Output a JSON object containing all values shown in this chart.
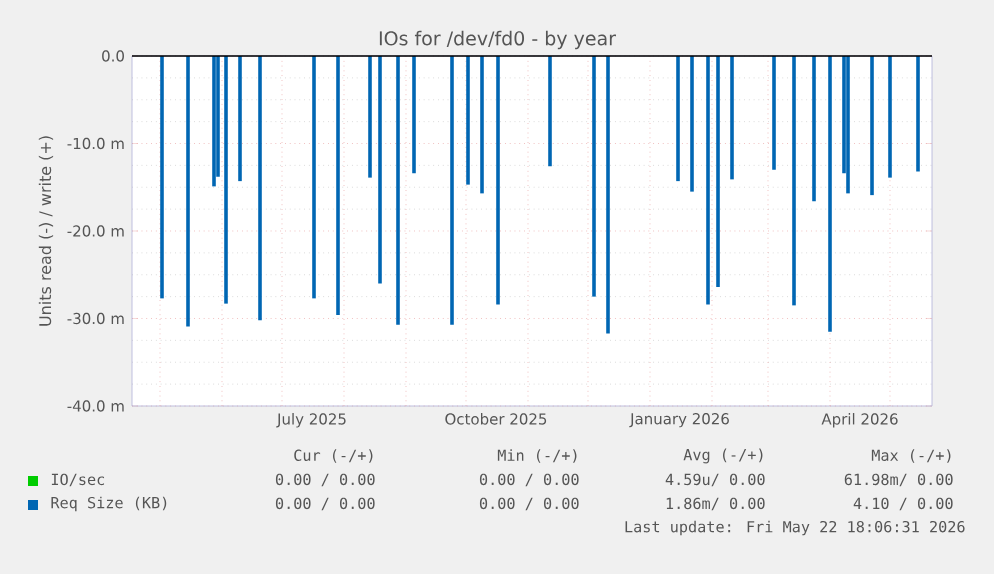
{
  "chart_data": {
    "type": "bar",
    "title": "IOs for /dev/fd0 - by year",
    "ylabel": "Units read (-) / write (+)",
    "xlim": [
      "2025-04-17",
      "2026-05-22"
    ],
    "ylim": [
      -40,
      0
    ],
    "xticks": [
      {
        "value": "2025-05-01",
        "label": null
      },
      {
        "value": "2025-06-01",
        "label": null
      },
      {
        "value": "2025-07-01",
        "label": null
      },
      {
        "value": "2025-07-16",
        "label": "July 2025"
      },
      {
        "value": "2025-08-01",
        "label": null
      },
      {
        "value": "2025-09-01",
        "label": null
      },
      {
        "value": "2025-10-01",
        "label": null
      },
      {
        "value": "2025-10-16",
        "label": "October 2025"
      },
      {
        "value": "2025-11-01",
        "label": null
      },
      {
        "value": "2025-12-01",
        "label": null
      },
      {
        "value": "2026-01-01",
        "label": null
      },
      {
        "value": "2026-01-16",
        "label": "January 2026"
      },
      {
        "value": "2026-02-01",
        "label": null
      },
      {
        "value": "2026-03-01",
        "label": null
      },
      {
        "value": "2026-04-01",
        "label": null
      },
      {
        "value": "2026-04-16",
        "label": "April 2026"
      },
      {
        "value": "2026-05-01",
        "label": null
      }
    ],
    "yticks": [
      {
        "value": 0,
        "label": "0.0"
      },
      {
        "value": -10,
        "label": "-10.0 m"
      },
      {
        "value": -20,
        "label": "-20.0 m"
      },
      {
        "value": -30,
        "label": "-30.0 m"
      },
      {
        "value": -40,
        "label": "-40.0 m"
      }
    ],
    "grid": true,
    "legend": "bottom",
    "series": [
      {
        "name": "IO/sec",
        "color": "#00cc00"
      },
      {
        "name": "Req Size (KB)",
        "color": "#0066b3",
        "x": [
          "2025-05-02",
          "2025-05-15",
          "2025-05-28",
          "2025-05-30",
          "2025-06-03",
          "2025-06-10",
          "2025-06-20",
          "2025-07-17",
          "2025-07-29",
          "2025-08-14",
          "2025-08-19",
          "2025-08-28",
          "2025-09-05",
          "2025-09-24",
          "2025-10-02",
          "2025-10-09",
          "2025-10-17",
          "2025-11-12",
          "2025-12-04",
          "2025-12-11",
          "2026-01-15",
          "2026-01-22",
          "2026-01-30",
          "2026-02-04",
          "2026-02-11",
          "2026-03-04",
          "2026-03-14",
          "2026-03-24",
          "2026-04-01",
          "2026-04-08",
          "2026-04-10",
          "2026-04-22",
          "2026-05-01",
          "2026-05-15"
        ],
        "values": [
          -27.7,
          -30.9,
          -14.9,
          -13.8,
          -28.3,
          -14.3,
          -30.2,
          -27.7,
          -29.6,
          -13.9,
          -26.0,
          -30.7,
          -13.4,
          -30.7,
          -14.7,
          -15.7,
          -28.4,
          -12.6,
          -27.5,
          -31.7,
          -14.3,
          -15.5,
          -28.4,
          -26.4,
          -14.1,
          -13.0,
          -28.5,
          -16.6,
          -31.5,
          -13.4,
          -15.7,
          -15.9,
          -13.9,
          -13.2
        ]
      }
    ],
    "ref_lines": [
      {
        "axis": "y",
        "value": 0,
        "color": "#000000"
      }
    ],
    "annotations": [
      "Cur (-/+)",
      "Min (-/+)",
      "Avg (-/+)",
      "Max (-/+)",
      "0.00 / 0.00",
      "0.00 / 0.00",
      "4.59u/ 0.00",
      "61.98m/ 0.00",
      "0.00 / 0.00",
      "0.00 / 0.00",
      "1.86m/ 0.00",
      "4.10 / 0.00",
      "Last update: Fri May 22 18:06:31 2026"
    ]
  }
}
